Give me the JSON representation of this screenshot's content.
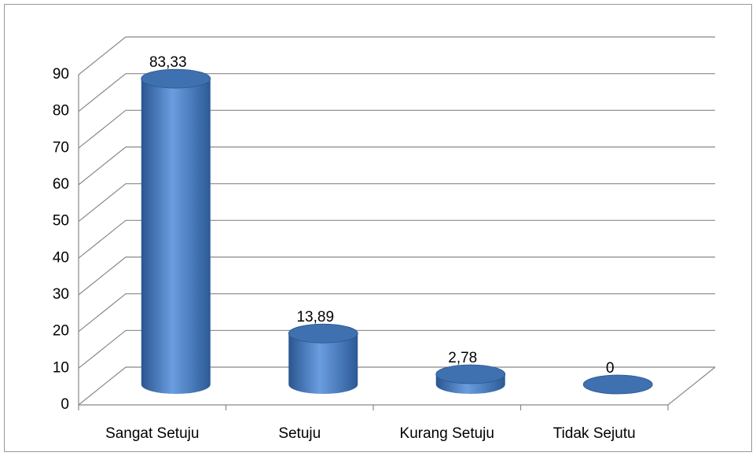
{
  "chart_data": {
    "type": "bar3d",
    "categories": [
      "Sangat Setuju",
      "Setuju",
      "Kurang Setuju",
      "Tidak Sejutu"
    ],
    "values": [
      83.33,
      13.89,
      2.78,
      0
    ],
    "value_labels": [
      "83,33",
      "13,89",
      "2,78",
      "0"
    ],
    "color": "#4f81bd",
    "ylim": [
      0,
      90
    ],
    "yticks": [
      0,
      10,
      20,
      30,
      40,
      50,
      60,
      70,
      80,
      90
    ],
    "grid": true
  }
}
